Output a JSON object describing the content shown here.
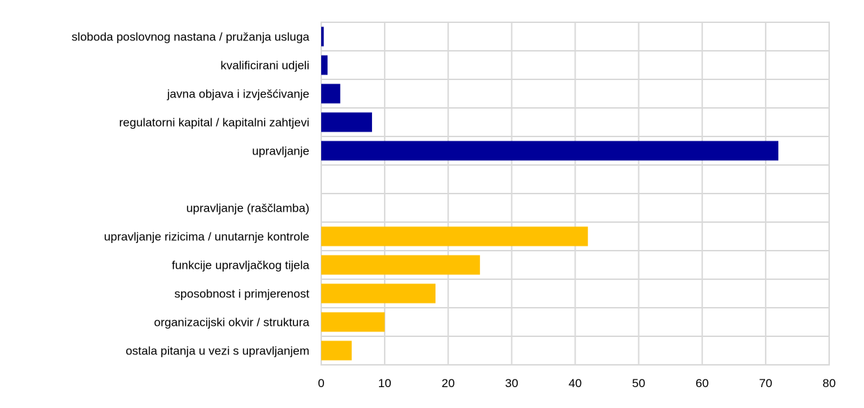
{
  "chart_data": {
    "type": "bar",
    "orientation": "horizontal",
    "categories": [
      "sloboda poslovnog nastana / pružanja usluga",
      "kvalificirani udjeli",
      "javna objava i izvješćivanje",
      "regulatorni kapital / kapitalni zahtjevi",
      "upravljanje",
      "",
      "upravljanje (raščlamba)",
      "upravljanje rizicima / unutarnje kontrole",
      "funkcije upravljačkog tijela",
      "sposobnost i primjerenost",
      "organizacijski okvir / struktura",
      "ostala pitanja u vezi s upravljanjem"
    ],
    "values": [
      0.4,
      1,
      3,
      8,
      72,
      null,
      null,
      42,
      25,
      18,
      10,
      4.8
    ],
    "bar_colors": [
      "#000099",
      "#000099",
      "#000099",
      "#000099",
      "#000099",
      null,
      null,
      "#FFC000",
      "#FFC000",
      "#FFC000",
      "#FFC000",
      "#FFC000"
    ],
    "xlim": [
      0,
      80
    ],
    "xticks": [
      "0",
      "10",
      "20",
      "30",
      "40",
      "50",
      "60",
      "70",
      "80"
    ],
    "grid": true,
    "legend": "none"
  }
}
